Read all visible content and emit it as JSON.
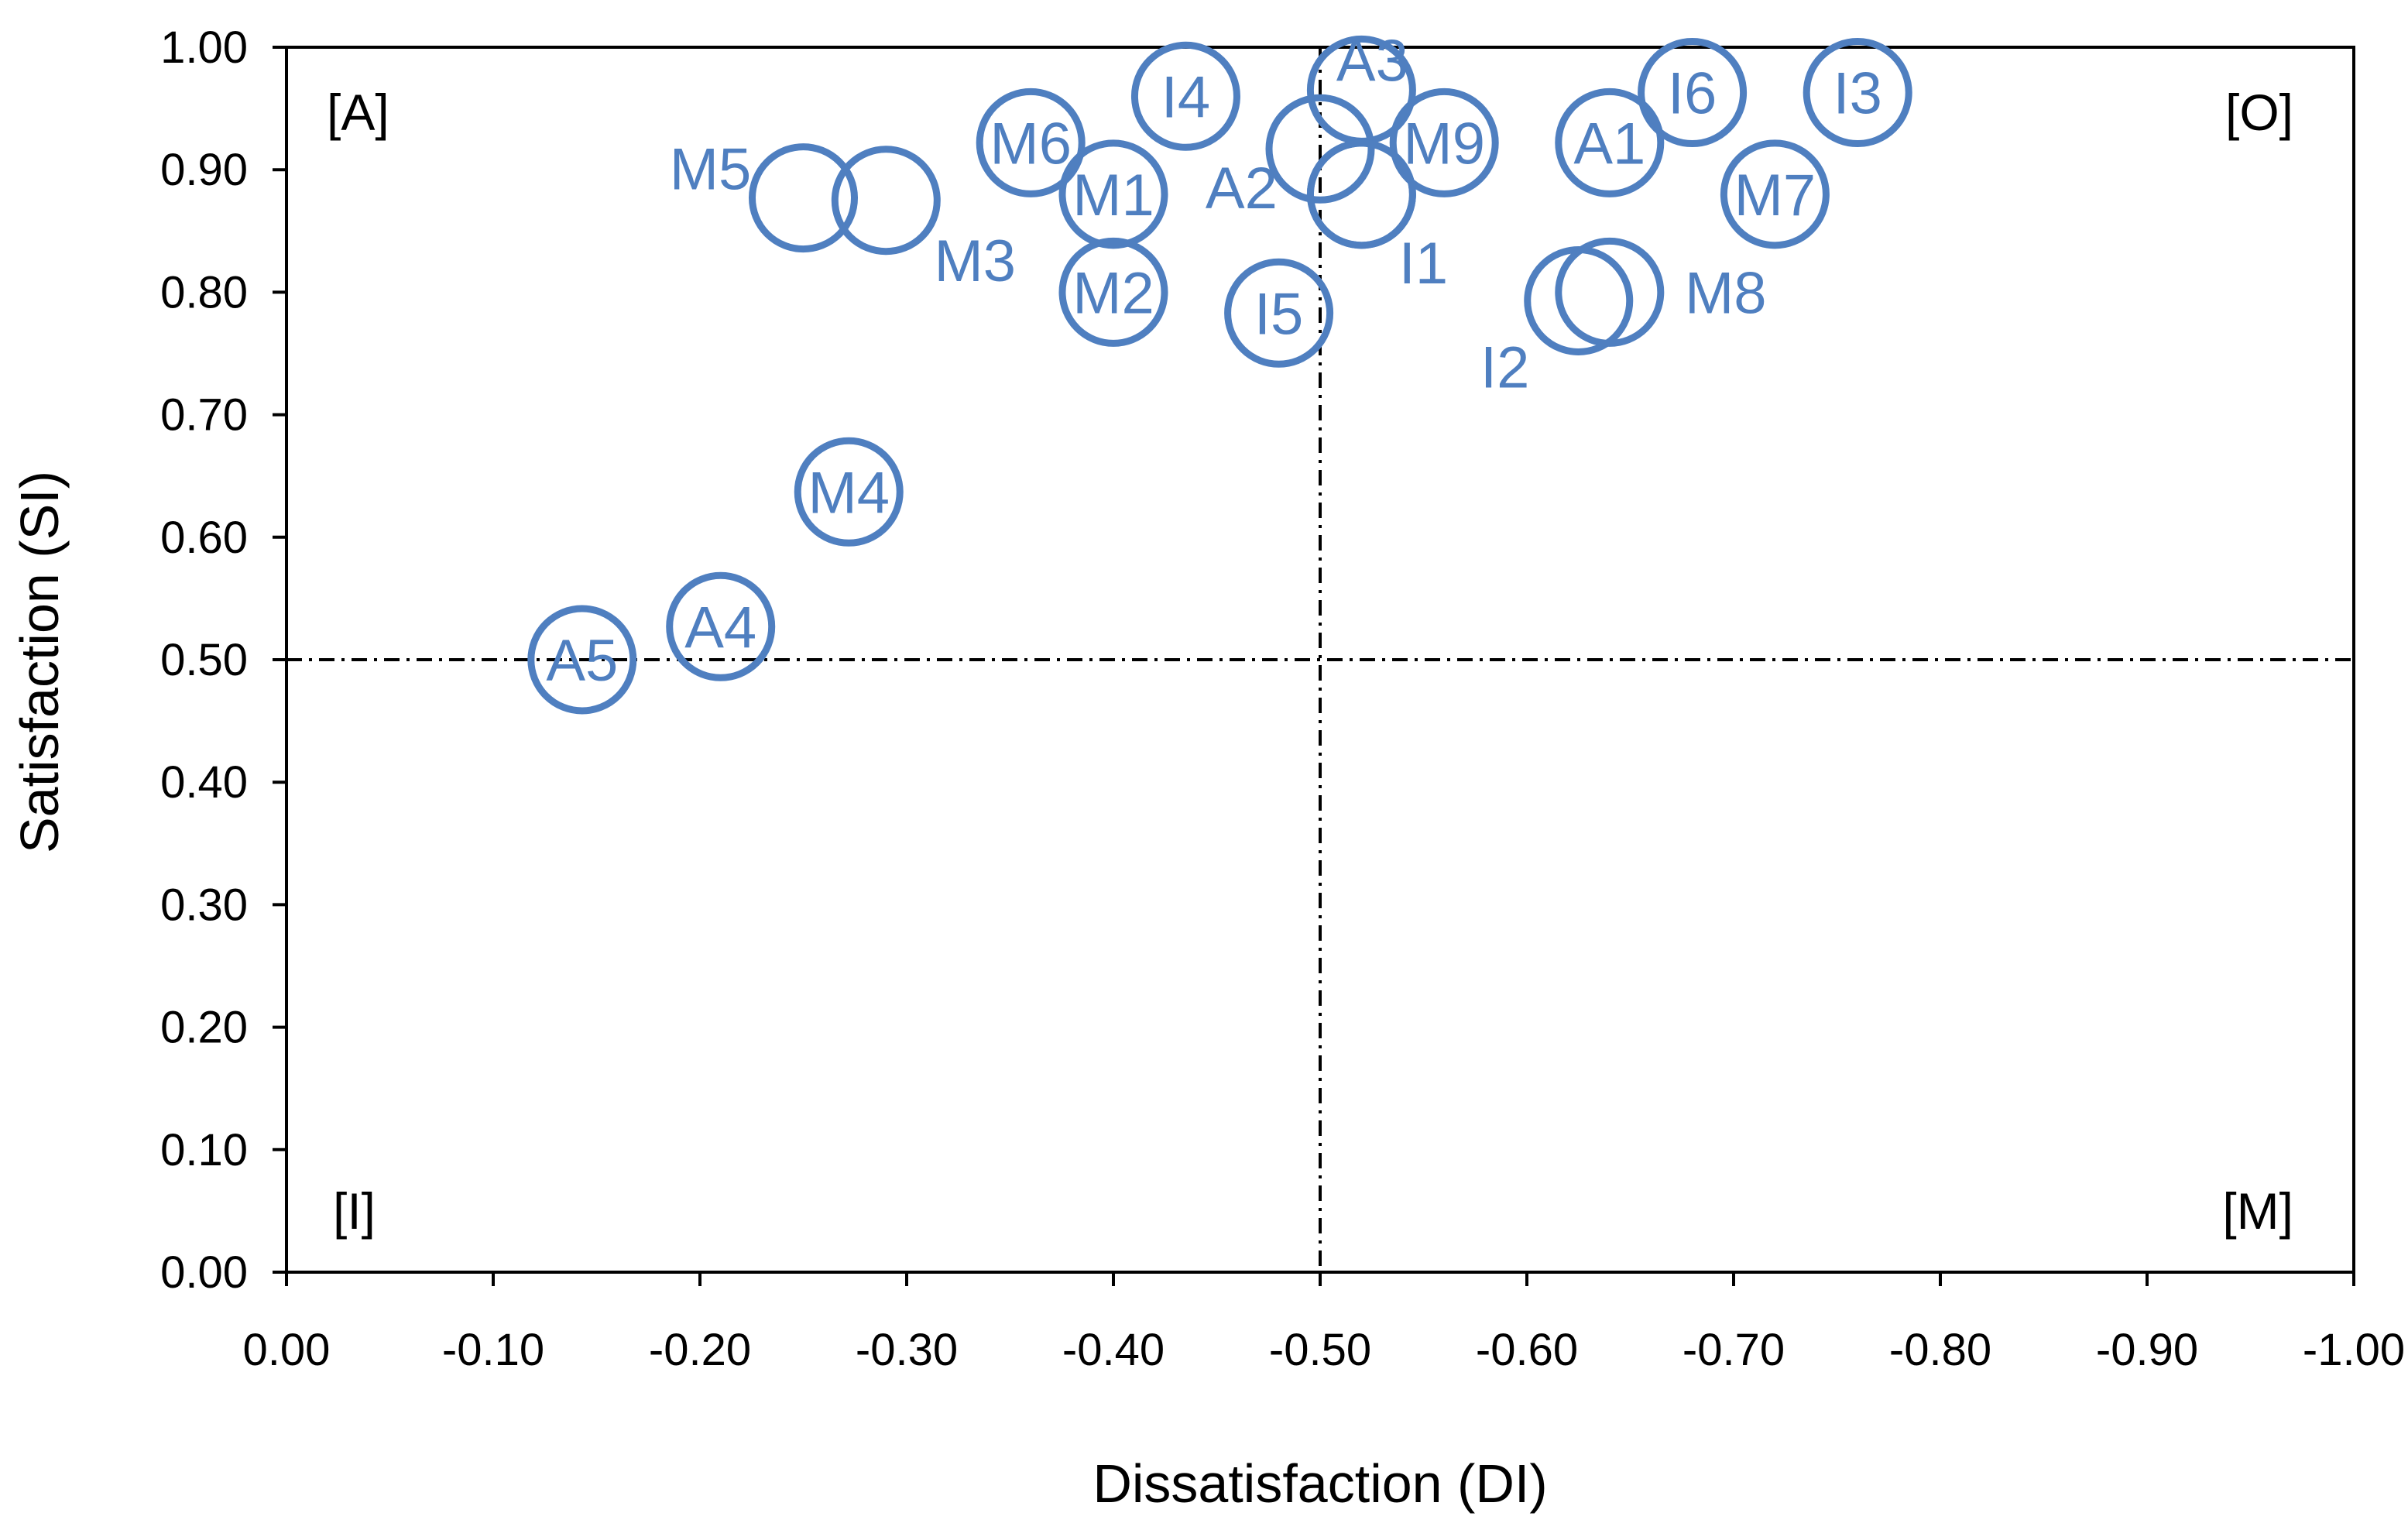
{
  "chart_data": {
    "type": "scatter",
    "xlabel": "Dissatisfaction (DI)",
    "ylabel": "Satisfaction (SI)",
    "xlim": [
      0,
      -1
    ],
    "ylim": [
      0,
      1
    ],
    "x_ticks": [
      "0.00",
      "-0.10",
      "-0.20",
      "-0.30",
      "-0.40",
      "-0.50",
      "-0.60",
      "-0.70",
      "-0.80",
      "-0.90",
      "-1.00"
    ],
    "y_ticks": [
      "0.00",
      "0.10",
      "0.20",
      "0.30",
      "0.40",
      "0.50",
      "0.60",
      "0.70",
      "0.80",
      "0.90",
      "1.00"
    ],
    "reference_lines": {
      "x": -0.5,
      "y": 0.5,
      "style": "dash-dot"
    },
    "quadrants": [
      {
        "label": "[A]",
        "position": "top-left"
      },
      {
        "label": "[O]",
        "position": "top-right"
      },
      {
        "label": "[I]",
        "position": "bottom-left"
      },
      {
        "label": "[M]",
        "position": "bottom-right"
      }
    ],
    "marker_color": "#4F7FC0",
    "grid": false,
    "legend": "none",
    "points": [
      {
        "label": "I4",
        "x": -0.435,
        "y": 0.96
      },
      {
        "label": "A3",
        "x": -0.52,
        "y": 0.965
      },
      {
        "label": "I6",
        "x": -0.68,
        "y": 0.963
      },
      {
        "label": "I3",
        "x": -0.76,
        "y": 0.963
      },
      {
        "label": "M6",
        "x": -0.36,
        "y": 0.922
      },
      {
        "label": "",
        "x": -0.5,
        "y": 0.917
      },
      {
        "label": "M9",
        "x": -0.56,
        "y": 0.922
      },
      {
        "label": "A1",
        "x": -0.64,
        "y": 0.922
      },
      {
        "label": "M5",
        "x": -0.25,
        "y": 0.877
      },
      {
        "label": "M3",
        "x": -0.29,
        "y": 0.875
      },
      {
        "label": "M1",
        "x": -0.4,
        "y": 0.88
      },
      {
        "label": "A2",
        "x": -0.52,
        "y": 0.88
      },
      {
        "label": "M7",
        "x": -0.72,
        "y": 0.88
      },
      {
        "label": "M2",
        "x": -0.4,
        "y": 0.8
      },
      {
        "label": "I5",
        "x": -0.48,
        "y": 0.783
      },
      {
        "label": "I1",
        "x": -0.52,
        "y": 0.88
      },
      {
        "label": "I2",
        "x": -0.625,
        "y": 0.793
      },
      {
        "label": "M8",
        "x": -0.64,
        "y": 0.8
      },
      {
        "label": "M4",
        "x": -0.272,
        "y": 0.637
      },
      {
        "label": "A4",
        "x": -0.21,
        "y": 0.527
      },
      {
        "label": "A5",
        "x": -0.143,
        "y": 0.5
      }
    ]
  }
}
